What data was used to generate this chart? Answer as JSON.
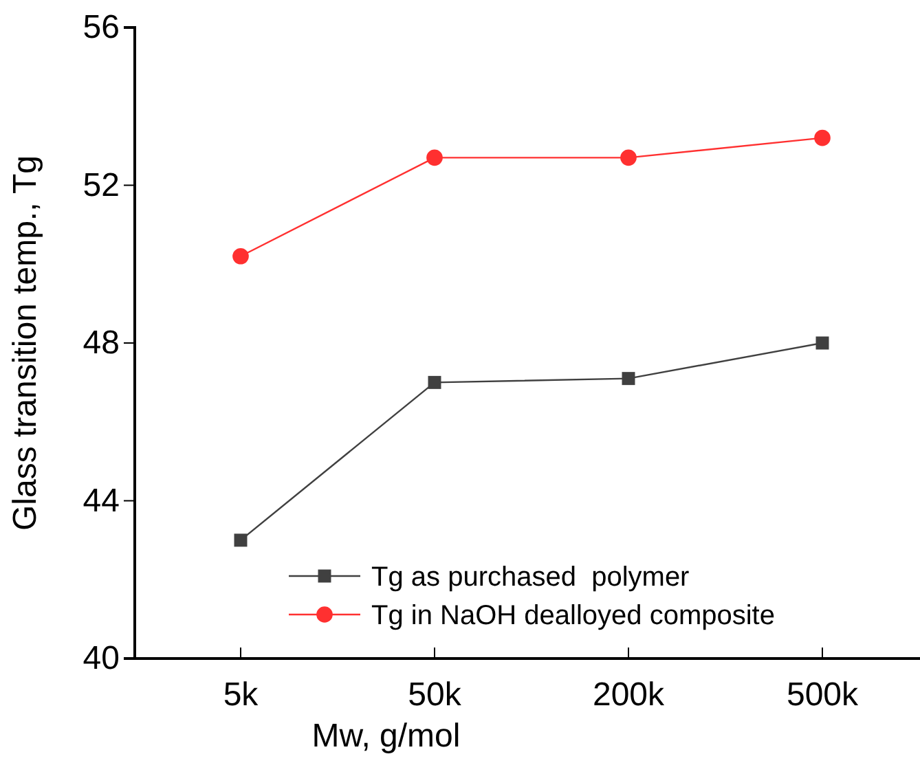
{
  "chart_data": {
    "type": "line",
    "xlabel": "Mw, g/mol",
    "ylabel": "Glass transition temp., Tg",
    "categories": [
      "5k",
      "50k",
      "200k",
      "500k"
    ],
    "ylim": [
      40,
      56
    ],
    "yticks": [
      40,
      44,
      48,
      52,
      56
    ],
    "legend": "bottom right",
    "grid": false,
    "series": [
      {
        "name": "Tg as purchased  polymer",
        "color": "#404040",
        "marker": "square",
        "values": [
          43.0,
          47.0,
          47.1,
          48.0
        ]
      },
      {
        "name": "Tg in NaOH dealloyed composite",
        "color": "#ff3030",
        "marker": "circle",
        "values": [
          50.2,
          52.7,
          52.7,
          53.2
        ]
      }
    ]
  }
}
